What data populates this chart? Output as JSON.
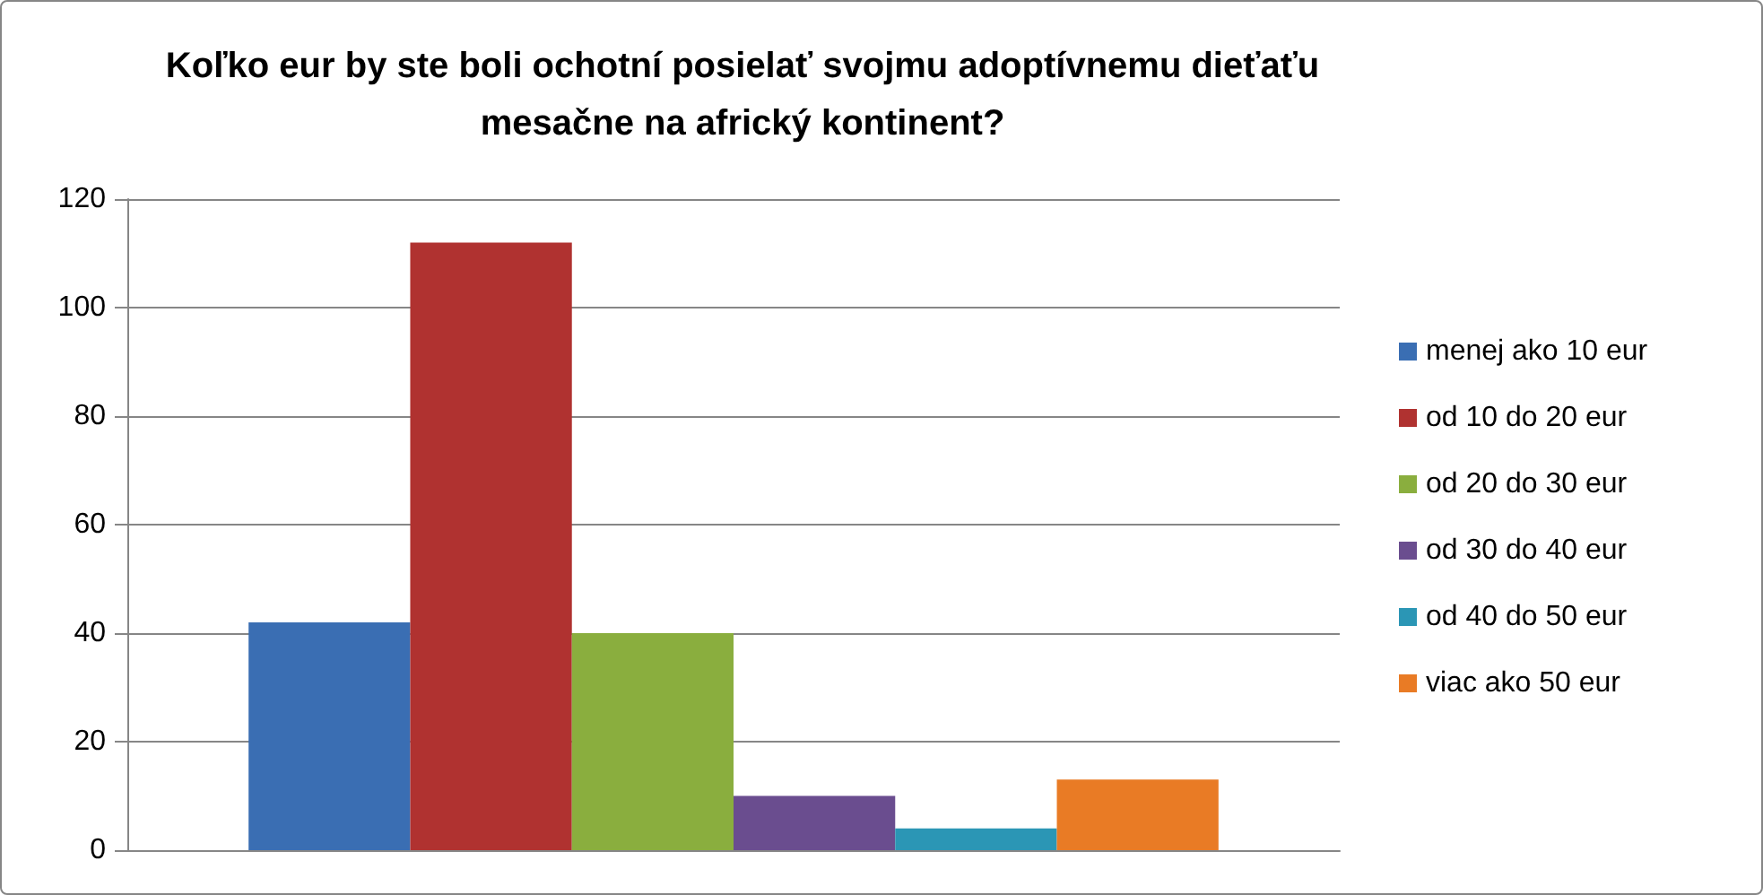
{
  "chart_data": {
    "type": "bar",
    "title": "Koľko eur by ste boli ochotní posielať svojmu adoptívnemu dieťaťu\nmesačne na africký kontinent?",
    "categories": [
      null
    ],
    "series": [
      {
        "name": "menej ako 10 eur",
        "color": "#3a6eb3",
        "values": [
          42
        ]
      },
      {
        "name": "od 10 do 20 eur",
        "color": "#b03230",
        "values": [
          112
        ]
      },
      {
        "name": "od 20 do 30 eur",
        "color": "#8aae3e",
        "values": [
          40
        ]
      },
      {
        "name": "od 30 do 40 eur",
        "color": "#6a4d8f",
        "values": [
          10
        ]
      },
      {
        "name": "od 40 do 50 eur",
        "color": "#2b96b5",
        "values": [
          4
        ]
      },
      {
        "name": "viac ako 50 eur",
        "color": "#e97b25",
        "values": [
          13
        ]
      }
    ],
    "ylim": [
      0,
      120
    ],
    "yticks": [
      0,
      20,
      40,
      60,
      80,
      100,
      120
    ],
    "grid": "y",
    "legend": "right"
  }
}
